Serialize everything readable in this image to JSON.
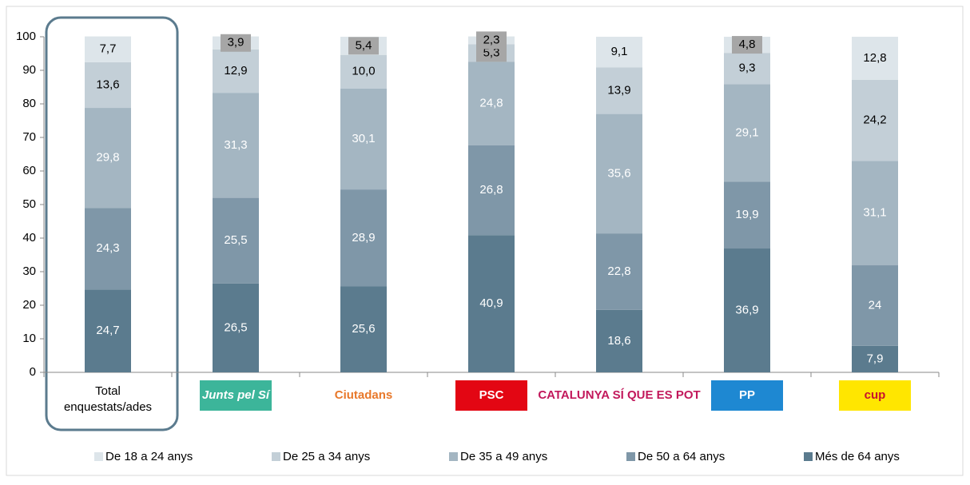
{
  "chart_data": {
    "type": "stacked_bar",
    "categories": [
      "Total enquestats/ades",
      "Junts pel Sí",
      "Ciutadans",
      "PSC",
      "CATALUNYA SÍ QUE ES POT",
      "PP",
      "cup"
    ],
    "series": [
      {
        "name": "De 18 a 24 anys",
        "color": "#dde5ea",
        "values": [
          7.7,
          3.9,
          5.4,
          2.3,
          9.1,
          4.8,
          12.8
        ],
        "value_labels": [
          "7,7",
          "3,9",
          "5,4",
          "2,3",
          "9,1",
          "4,8",
          "12,8"
        ]
      },
      {
        "name": "De 25 a 34 anys",
        "color": "#c3cfd7",
        "values": [
          13.6,
          12.9,
          10.0,
          5.3,
          13.9,
          9.3,
          24.2
        ],
        "value_labels": [
          "13,6",
          "12,9",
          "10,0",
          "5,3",
          "13,9",
          "9,3",
          "24,2"
        ]
      },
      {
        "name": "De 35 a 49 anys",
        "color": "#a4b6c2",
        "values": [
          29.8,
          31.3,
          30.1,
          24.8,
          35.6,
          29.1,
          31.1
        ],
        "value_labels": [
          "29,8",
          "31,3",
          "30,1",
          "24,8",
          "35,6",
          "29,1",
          "31,1"
        ]
      },
      {
        "name": "De 50 a 64 anys",
        "color": "#7f97a8",
        "values": [
          24.3,
          25.5,
          28.9,
          26.8,
          22.8,
          19.9,
          24
        ],
        "value_labels": [
          "24,3",
          "25,5",
          "28,9",
          "26,8",
          "22,8",
          "19,9",
          "24"
        ]
      },
      {
        "name": "Més de 64 anys",
        "color": "#5b7b8e",
        "values": [
          24.7,
          26.5,
          25.6,
          40.9,
          18.6,
          36.9,
          7.9
        ],
        "value_labels": [
          "24,7",
          "26,5",
          "25,6",
          "40,9",
          "18,6",
          "36,9",
          "7,9"
        ]
      }
    ],
    "ylim": [
      0,
      100
    ],
    "yticks": [
      0,
      10,
      20,
      30,
      40,
      50,
      60,
      70,
      80,
      90,
      100
    ],
    "legend": "bottom"
  }
}
